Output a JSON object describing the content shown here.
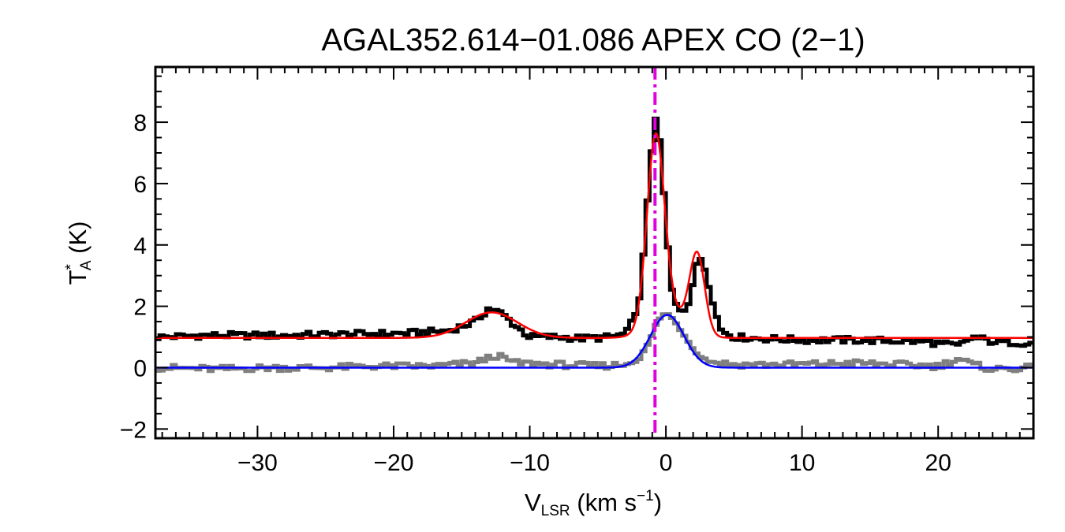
{
  "chart_data": {
    "type": "line",
    "title": "AGAL352.614−01.086  APEX CO (2−1)",
    "xlabel": {
      "main": "V",
      "sub": "LSR",
      "unit_pre": " (km s",
      "sup": "−1",
      "unit_post": ")"
    },
    "ylabel": {
      "main": "T",
      "sup": "*",
      "sub": "A",
      "unit": " (K)"
    },
    "xlim": [
      -37.5,
      27
    ],
    "ylim": [
      -2.3,
      9.8
    ],
    "xticks": [
      -30,
      -20,
      -10,
      0,
      10,
      20
    ],
    "xtick_labels": [
      "−30",
      "−20",
      "−10",
      "0",
      "10",
      "20"
    ],
    "yticks": [
      -2,
      0,
      2,
      4,
      6,
      8
    ],
    "ytick_labels": [
      "−2",
      "0",
      "2",
      "4",
      "6",
      "8"
    ],
    "grid": false,
    "vline": {
      "x": -0.8,
      "color": "#e000e0",
      "style": "dash-dot"
    },
    "series": [
      {
        "kind": "observed-step",
        "color": "#000000",
        "x": [
          -37,
          -34,
          -31,
          -28,
          -25,
          -22,
          -19,
          -16,
          -14,
          -13,
          -12,
          -11,
          -10,
          -8,
          -6,
          -4,
          -3,
          -2,
          -1.6,
          -1.2,
          -0.8,
          -0.4,
          0,
          0.4,
          0.8,
          1.2,
          1.6,
          2,
          2.4,
          2.8,
          3.4,
          4,
          5,
          7,
          10,
          13,
          16,
          19,
          21.5,
          22.5,
          24,
          27
        ],
        "y": [
          1.0,
          1.05,
          1.05,
          1.05,
          1.08,
          1.1,
          1.12,
          1.2,
          1.5,
          1.95,
          1.75,
          1.35,
          1.0,
          1.0,
          0.95,
          1.0,
          1.1,
          2.0,
          3.9,
          6.4,
          8.2,
          7.3,
          4.7,
          2.6,
          2.0,
          1.8,
          2.0,
          2.8,
          3.7,
          3.3,
          2.2,
          1.25,
          1.0,
          0.95,
          0.9,
          0.9,
          0.88,
          0.85,
          0.7,
          1.0,
          0.85,
          0.8
        ]
      },
      {
        "kind": "reference-step",
        "color": "#7f7f7f",
        "x": [
          -37,
          -33,
          -29,
          -25,
          -21,
          -17,
          -14,
          -12.5,
          -11,
          -8,
          -5,
          -3,
          -2,
          -1.2,
          -0.6,
          0,
          0.6,
          1.2,
          1.8,
          2.4,
          3.2,
          5,
          8,
          11,
          14,
          17,
          20,
          21.5,
          22.5,
          24,
          27
        ],
        "y": [
          0.0,
          -0.05,
          0.0,
          0.0,
          0.05,
          0.05,
          0.15,
          0.4,
          0.15,
          0.1,
          0.05,
          0.1,
          0.25,
          0.85,
          1.55,
          1.8,
          1.55,
          1.15,
          0.75,
          0.4,
          0.2,
          0.1,
          0.1,
          0.12,
          0.15,
          0.1,
          0.05,
          0.3,
          0.1,
          -0.05,
          0.0
        ]
      },
      {
        "kind": "gaussian-fit",
        "color": "#ff0000",
        "baseline": 0.97,
        "components": [
          {
            "amp": 0.83,
            "center": -12.8,
            "fwhm": 4.5
          },
          {
            "amp": 6.0,
            "center": -0.75,
            "fwhm": 1.5
          },
          {
            "amp": 2.55,
            "center": 2.3,
            "fwhm": 1.3
          },
          {
            "amp": 0.85,
            "center": 0.2,
            "fwhm": 3.2
          }
        ]
      },
      {
        "kind": "gaussian-fit",
        "color": "#0000ff",
        "baseline": 0.0,
        "components": [
          {
            "amp": 1.72,
            "center": 0.1,
            "fwhm": 2.9
          }
        ]
      }
    ]
  }
}
